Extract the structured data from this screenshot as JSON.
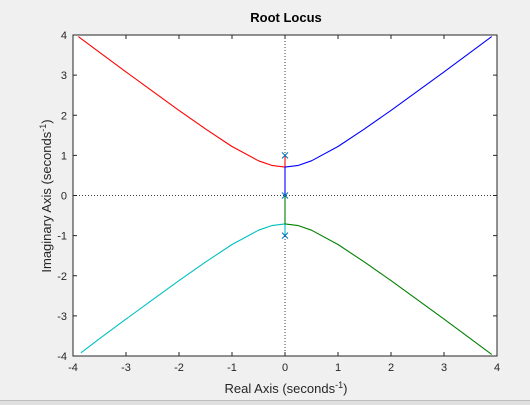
{
  "chart_data": {
    "type": "line",
    "title": "Root Locus",
    "xlabel": {
      "main": "Real Axis (seconds",
      "sup": "-1",
      "close": ")"
    },
    "ylabel": {
      "main": "Imaginary Axis (seconds",
      "sup": "-1",
      "close": ")"
    },
    "xlim": [
      -4,
      4
    ],
    "ylim": [
      -4,
      4
    ],
    "xticks": [
      -4,
      -3,
      -2,
      -1,
      0,
      1,
      2,
      3,
      4
    ],
    "yticks": [
      -4,
      -3,
      -2,
      -1,
      0,
      1,
      2,
      3,
      4
    ],
    "grid": false,
    "reference_lines": {
      "x": 0,
      "y": 0,
      "style": "dotted"
    },
    "poles": [
      {
        "x": 0,
        "y": 1
      },
      {
        "x": 0,
        "y": 0
      },
      {
        "x": 0,
        "y": -1
      }
    ],
    "series": [
      {
        "color": "#ff0000",
        "points": [
          [
            0,
            1
          ],
          [
            0,
            0.707
          ],
          [
            -0.25,
            0.75
          ],
          [
            -0.5,
            0.866
          ],
          [
            -1,
            1.22
          ],
          [
            -1.5,
            1.66
          ],
          [
            -2,
            2.12
          ],
          [
            -2.5,
            2.6
          ],
          [
            -3,
            3.08
          ],
          [
            -3.5,
            3.57
          ],
          [
            -3.9,
            3.96
          ]
        ]
      },
      {
        "color": "#0000ff",
        "points": [
          [
            0,
            0
          ],
          [
            0,
            0.707
          ],
          [
            0.25,
            0.75
          ],
          [
            0.5,
            0.866
          ],
          [
            1,
            1.22
          ],
          [
            1.5,
            1.66
          ],
          [
            2,
            2.12
          ],
          [
            2.5,
            2.6
          ],
          [
            3,
            3.08
          ],
          [
            3.5,
            3.57
          ],
          [
            3.9,
            3.96
          ]
        ]
      },
      {
        "color": "#00bfbf",
        "points": [
          [
            0,
            -1
          ],
          [
            0,
            -0.707
          ],
          [
            -0.25,
            -0.75
          ],
          [
            -0.5,
            -0.866
          ],
          [
            -1,
            -1.22
          ],
          [
            -1.5,
            -1.66
          ],
          [
            -2,
            -2.12
          ],
          [
            -2.5,
            -2.6
          ],
          [
            -3,
            -3.08
          ],
          [
            -3.5,
            -3.57
          ],
          [
            -3.85,
            -3.92
          ]
        ]
      },
      {
        "color": "#008000",
        "points": [
          [
            0,
            0
          ],
          [
            0,
            -0.707
          ],
          [
            0.25,
            -0.75
          ],
          [
            0.5,
            -0.866
          ],
          [
            1,
            -1.22
          ],
          [
            1.5,
            -1.66
          ],
          [
            2,
            -2.12
          ],
          [
            2.5,
            -2.6
          ],
          [
            3,
            -3.08
          ],
          [
            3.5,
            -3.57
          ],
          [
            3.9,
            -3.96
          ]
        ]
      }
    ],
    "colors": {
      "axes_bg": "#ffffff",
      "figure_bg": "#f0f0f0",
      "axis": "#262626",
      "pole_marker": "#0072bd"
    }
  }
}
